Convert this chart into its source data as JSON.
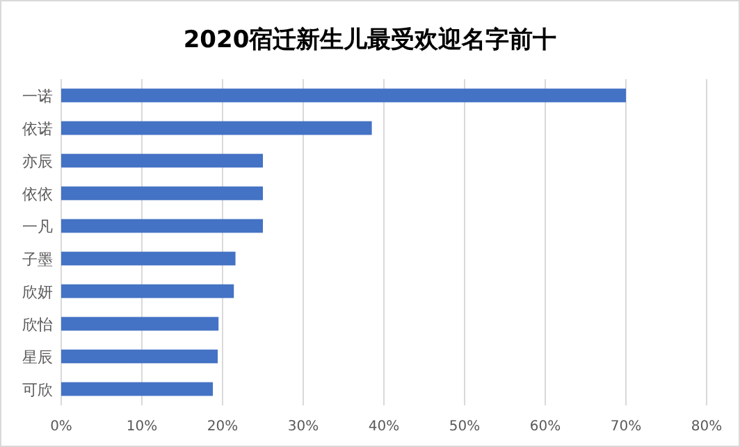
{
  "chart_data": {
    "type": "bar",
    "orientation": "horizontal",
    "title": "2020宿迁新生儿最受欢迎名字前十",
    "categories": [
      "一诺",
      "依诺",
      "亦辰",
      "依依",
      "一凡",
      "子墨",
      "欣妍",
      "欣怡",
      "星辰",
      "可欣"
    ],
    "values": [
      70,
      38.5,
      25,
      25,
      25,
      21.6,
      21.4,
      19.5,
      19.4,
      18.8
    ],
    "color": "#4472c4",
    "xlim": [
      0,
      80
    ],
    "xticks": [
      {
        "value": 0,
        "label": "0%"
      },
      {
        "value": 10,
        "label": "10%"
      },
      {
        "value": 20,
        "label": "20%"
      },
      {
        "value": 30,
        "label": "30%"
      },
      {
        "value": 40,
        "label": "40%"
      },
      {
        "value": 50,
        "label": "50%"
      },
      {
        "value": 60,
        "label": "60%"
      },
      {
        "value": 70,
        "label": "70%"
      },
      {
        "value": 80,
        "label": "80%"
      }
    ],
    "grid": "x"
  }
}
